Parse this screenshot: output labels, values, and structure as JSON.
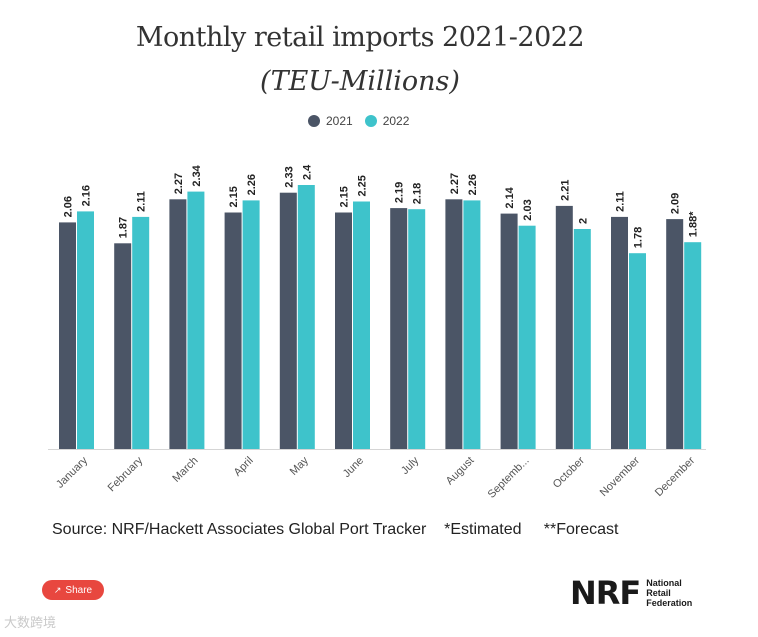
{
  "chart_data": {
    "type": "bar",
    "title": "Monthly retail imports 2021-2022",
    "subtitle": "(TEU-Millions)",
    "categories": [
      "January",
      "February",
      "March",
      "April",
      "May",
      "June",
      "July",
      "August",
      "Septemb...",
      "October",
      "November",
      "December"
    ],
    "series": [
      {
        "name": "2021",
        "color": "#4b5566",
        "values": [
          2.06,
          1.87,
          2.27,
          2.15,
          2.33,
          2.15,
          2.19,
          2.27,
          2.14,
          2.21,
          2.11,
          2.09
        ],
        "labels": [
          "2.06",
          "1.87",
          "2.27",
          "2.15",
          "2.33",
          "2.15",
          "2.19",
          "2.27",
          "2.14",
          "2.21",
          "2.11",
          "2.09"
        ]
      },
      {
        "name": "2022",
        "color": "#3ec3cb",
        "values": [
          2.16,
          2.11,
          2.34,
          2.26,
          2.4,
          2.25,
          2.18,
          2.26,
          2.03,
          2.0,
          1.78,
          1.88
        ],
        "labels": [
          "2.16",
          "2.11",
          "2.34",
          "2.26",
          "2.4",
          "2.25",
          "2.18",
          "2.26",
          "2.03",
          "2",
          "1.78",
          "1.88*"
        ]
      }
    ],
    "ylim": [
      0,
      2.5
    ],
    "legend_position": "top-center",
    "grid": false
  },
  "source_text": "Source: NRF/Hackett Associates Global Port Tracker    *Estimated     **Forecast",
  "share_label": "Share",
  "logo": {
    "mark": "NRF",
    "lines": [
      "National",
      "Retail",
      "Federation"
    ]
  },
  "watermark": "大数跨境"
}
